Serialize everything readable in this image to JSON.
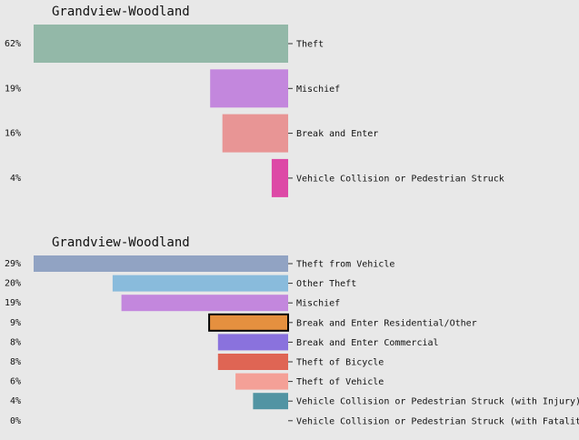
{
  "chart_data": [
    {
      "type": "bar",
      "orientation": "horizontal",
      "title": "Grandview-Woodland",
      "categories": [
        "Theft",
        "Mischief",
        "Break and Enter",
        "Vehicle Collision or Pedestrian Struck"
      ],
      "values": [
        62,
        19,
        16,
        4
      ],
      "value_labels": [
        "62%",
        "19%",
        "16%",
        "4%"
      ],
      "colors": [
        "#93b8a8",
        "#c387dd",
        "#e89595",
        "#dd49a6"
      ],
      "xlim": [
        0,
        62
      ],
      "grid": false,
      "legend": "none"
    },
    {
      "type": "bar",
      "orientation": "horizontal",
      "title": "Grandview-Woodland",
      "categories": [
        "Theft from Vehicle",
        "Other Theft",
        "Mischief",
        "Break and Enter Residential/Other",
        "Break and Enter Commercial",
        "Theft of Bicycle",
        "Theft of Vehicle",
        "Vehicle Collision or Pedestrian Struck (with Injury)",
        "Vehicle Collision or Pedestrian Struck (with Fatality)"
      ],
      "values": [
        29,
        20,
        19,
        9,
        8,
        8,
        6,
        4,
        0
      ],
      "value_labels": [
        "29%",
        "20%",
        "19%",
        "9%",
        "8%",
        "8%",
        "6%",
        "4%",
        "0%"
      ],
      "colors": [
        "#91a3c3",
        "#89bbdc",
        "#c387dd",
        "#e5903f",
        "#8a72dd",
        "#df6554",
        "#f4a097",
        "#5294a3",
        "#cccccc"
      ],
      "highlighted": "Break and Enter Residential/Other",
      "xlim": [
        0,
        29
      ],
      "grid": false,
      "legend": "none"
    }
  ]
}
